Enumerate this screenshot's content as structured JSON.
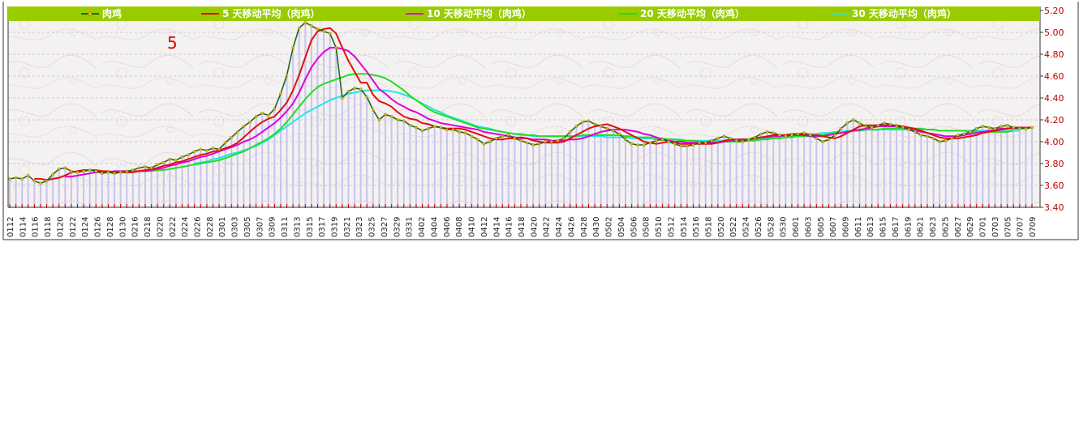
{
  "legend": [
    {
      "label": "肉鸡",
      "color": "#1a6b1a"
    },
    {
      "label": "5 天移动平均（肉鸡）",
      "color": "#e01010"
    },
    {
      "label": "10 天移动平均（肉鸡）",
      "color": "#dd00dd"
    },
    {
      "label": "20 天移动平均（肉鸡）",
      "color": "#22dd22"
    },
    {
      "label": "30 天移动平均（肉鸡）",
      "color": "#22e5e5"
    }
  ],
  "annotation": "5",
  "colors": {
    "legend_bar": "#99cc00",
    "legend_text": "#ffffff",
    "axis_text": "#c00000",
    "bars": "#c8c4ee",
    "price_line": "#1a6b1a",
    "price_markers": "#e8c000",
    "plot_bg": "#f4f1f1",
    "grid": "#c8c8dc"
  },
  "chart_data": {
    "type": "line",
    "grid": true,
    "legend_position": "top",
    "ylim": [
      3.4,
      5.2
    ],
    "yticks": [
      "5.20",
      "5.00",
      "4.80",
      "4.60",
      "4.40",
      "4.20",
      "4.00",
      "3.80",
      "3.60",
      "3.40"
    ],
    "xtick_labels": [
      "0112",
      "0114",
      "0116",
      "0118",
      "0120",
      "0122",
      "0124",
      "0126",
      "0128",
      "0130",
      "0216",
      "0218",
      "0220",
      "0222",
      "0224",
      "0226",
      "0228",
      "0301",
      "0303",
      "0305",
      "0307",
      "0309",
      "0311",
      "0313",
      "0315",
      "0317",
      "0319",
      "0321",
      "0323",
      "0325",
      "0327",
      "0329",
      "0331",
      "0402",
      "0404",
      "0406",
      "0408",
      "0410",
      "0412",
      "0414",
      "0416",
      "0418",
      "0420",
      "0422",
      "0424",
      "0426",
      "0428",
      "0430",
      "0502",
      "0504",
      "0506",
      "0508",
      "0510",
      "0512",
      "0514",
      "0516",
      "0518",
      "0520",
      "0522",
      "0524",
      "0526",
      "0528",
      "0530",
      "0601",
      "0603",
      "0605",
      "0607",
      "0609",
      "0611",
      "0613",
      "0615",
      "0617",
      "0619",
      "0621",
      "0623",
      "0625",
      "0627",
      "0629",
      "0701",
      "0703",
      "0705",
      "0707",
      "0709"
    ],
    "series": [
      {
        "name": "肉鸡",
        "key": "price",
        "values": [
          3.66,
          3.67,
          3.66,
          3.69,
          3.64,
          3.62,
          3.64,
          3.7,
          3.75,
          3.76,
          3.73,
          3.72,
          3.73,
          3.74,
          3.73,
          3.71,
          3.72,
          3.71,
          3.72,
          3.73,
          3.74,
          3.76,
          3.77,
          3.76,
          3.79,
          3.81,
          3.84,
          3.83,
          3.86,
          3.88,
          3.91,
          3.93,
          3.92,
          3.94,
          3.93,
          3.99,
          4.04,
          4.09,
          4.14,
          4.18,
          4.23,
          4.26,
          4.24,
          4.3,
          4.44,
          4.61,
          4.86,
          5.04,
          5.09,
          5.06,
          5.03,
          5.01,
          4.99,
          4.86,
          4.4,
          4.46,
          4.49,
          4.48,
          4.41,
          4.29,
          4.2,
          4.25,
          4.23,
          4.2,
          4.19,
          4.15,
          4.13,
          4.1,
          4.12,
          4.14,
          4.13,
          4.11,
          4.11,
          4.09,
          4.08,
          4.05,
          4.02,
          3.98,
          4.0,
          4.03,
          4.05,
          4.06,
          4.03,
          4.01,
          3.99,
          3.97,
          3.98,
          4.0,
          4.0,
          4.01,
          4.03,
          4.09,
          4.14,
          4.18,
          4.19,
          4.16,
          4.14,
          4.12,
          4.1,
          4.07,
          4.02,
          3.98,
          3.97,
          3.97,
          3.99,
          4.01,
          4.02,
          4.0,
          3.98,
          3.96,
          3.96,
          3.97,
          3.99,
          3.99,
          4.01,
          4.03,
          4.05,
          4.03,
          4.01,
          4.0,
          4.02,
          4.04,
          4.07,
          4.09,
          4.08,
          4.06,
          4.05,
          4.06,
          4.07,
          4.08,
          4.06,
          4.03,
          4.0,
          4.02,
          4.06,
          4.12,
          4.17,
          4.2,
          4.17,
          4.14,
          4.13,
          4.15,
          4.17,
          4.16,
          4.14,
          4.13,
          4.11,
          4.09,
          4.06,
          4.05,
          4.03,
          4.0,
          4.01,
          4.03,
          4.06,
          4.07,
          4.09,
          4.12,
          4.14,
          4.13,
          4.12,
          4.14,
          4.15,
          4.13,
          4.12,
          4.12,
          4.13
        ]
      },
      {
        "name": "5 天移动平均（肉鸡）",
        "key": "ma5",
        "values": [
          null,
          null,
          null,
          null,
          3.66,
          3.66,
          3.65,
          3.66,
          3.67,
          3.69,
          3.72,
          3.73,
          3.74,
          3.74,
          3.74,
          3.73,
          3.73,
          3.72,
          3.72,
          3.72,
          3.72,
          3.73,
          3.74,
          3.75,
          3.76,
          3.78,
          3.79,
          3.81,
          3.82,
          3.84,
          3.86,
          3.88,
          3.89,
          3.91,
          3.92,
          3.94,
          3.96,
          3.99,
          4.04,
          4.09,
          4.14,
          4.18,
          4.21,
          4.23,
          4.29,
          4.36,
          4.47,
          4.61,
          4.77,
          4.93,
          5.01,
          5.03,
          5.04,
          4.99,
          4.86,
          4.74,
          4.64,
          4.54,
          4.54,
          4.43,
          4.37,
          4.35,
          4.32,
          4.27,
          4.23,
          4.21,
          4.2,
          4.17,
          4.16,
          4.14,
          4.13,
          4.12,
          4.12,
          4.12,
          4.11,
          4.09,
          4.07,
          4.05,
          4.03,
          4.02,
          4.02,
          4.03,
          4.03,
          4.04,
          4.03,
          4.01,
          4.0,
          3.99,
          3.99,
          3.99,
          4.0,
          4.03,
          4.06,
          4.09,
          4.12,
          4.14,
          4.15,
          4.16,
          4.14,
          4.12,
          4.09,
          4.06,
          4.03,
          4.0,
          3.99,
          3.98,
          3.99,
          4.0,
          3.99,
          3.98,
          3.98,
          3.98,
          3.98,
          3.98,
          3.98,
          3.99,
          4.01,
          4.02,
          4.02,
          4.02,
          4.02,
          4.03,
          4.04,
          4.05,
          4.06,
          4.06,
          4.06,
          4.07,
          4.07,
          4.06,
          4.06,
          4.06,
          4.05,
          4.04,
          4.03,
          4.05,
          4.08,
          4.11,
          4.14,
          4.15,
          4.15,
          4.15,
          4.15,
          4.15,
          4.15,
          4.14,
          4.13,
          4.12,
          4.1,
          4.08,
          4.06,
          4.04,
          4.03,
          4.03,
          4.03,
          4.04,
          4.05,
          4.06,
          4.08,
          4.09,
          4.1,
          4.11,
          4.12,
          4.13,
          4.13,
          4.13,
          4.13
        ]
      },
      {
        "name": "10 天移动平均（肉鸡）",
        "key": "ma10",
        "values": [
          null,
          null,
          null,
          null,
          null,
          null,
          null,
          null,
          null,
          3.68,
          3.68,
          3.69,
          3.7,
          3.71,
          3.72,
          3.72,
          3.72,
          3.73,
          3.73,
          3.73,
          3.73,
          3.73,
          3.73,
          3.74,
          3.75,
          3.76,
          3.78,
          3.79,
          3.81,
          3.82,
          3.84,
          3.86,
          3.87,
          3.89,
          3.91,
          3.93,
          3.95,
          3.97,
          4.0,
          4.02,
          4.05,
          4.09,
          4.13,
          4.17,
          4.22,
          4.28,
          4.35,
          4.45,
          4.57,
          4.68,
          4.76,
          4.82,
          4.86,
          4.86,
          4.85,
          4.83,
          4.78,
          4.71,
          4.64,
          4.56,
          4.48,
          4.44,
          4.39,
          4.35,
          4.32,
          4.29,
          4.27,
          4.24,
          4.21,
          4.19,
          4.17,
          4.16,
          4.15,
          4.14,
          4.13,
          4.12,
          4.11,
          4.09,
          4.08,
          4.07,
          4.06,
          4.05,
          4.04,
          4.03,
          4.03,
          4.02,
          4.02,
          4.02,
          4.01,
          4.01,
          4.01,
          4.02,
          4.02,
          4.03,
          4.05,
          4.07,
          4.09,
          4.1,
          4.11,
          4.11,
          4.11,
          4.1,
          4.09,
          4.07,
          4.06,
          4.04,
          4.02,
          4.01,
          4.0,
          4.0,
          3.99,
          3.99,
          3.99,
          3.99,
          3.99,
          3.99,
          4.0,
          4.01,
          4.01,
          4.02,
          4.02,
          4.03,
          4.04,
          4.04,
          4.05,
          4.05,
          4.06,
          4.06,
          4.06,
          4.06,
          4.05,
          4.05,
          4.05,
          4.06,
          4.07,
          4.08,
          4.09,
          4.1,
          4.11,
          4.12,
          4.13,
          4.14,
          4.14,
          4.14,
          4.14,
          4.13,
          4.12,
          4.1,
          4.09,
          4.08,
          4.07,
          4.06,
          4.05,
          4.05,
          4.05,
          4.06,
          4.07,
          4.08,
          4.09,
          4.1,
          4.11,
          4.12,
          4.12,
          4.12,
          4.12
        ]
      },
      {
        "name": "20 天移动平均（肉鸡）",
        "key": "ma20",
        "values": [
          null,
          null,
          null,
          null,
          null,
          null,
          null,
          null,
          null,
          null,
          null,
          null,
          null,
          null,
          null,
          null,
          null,
          null,
          null,
          3.72,
          3.72,
          3.73,
          3.73,
          3.73,
          3.74,
          3.74,
          3.75,
          3.76,
          3.77,
          3.78,
          3.79,
          3.8,
          3.81,
          3.82,
          3.83,
          3.85,
          3.87,
          3.89,
          3.91,
          3.94,
          3.97,
          4.0,
          4.03,
          4.07,
          4.12,
          4.18,
          4.25,
          4.32,
          4.39,
          4.45,
          4.5,
          4.53,
          4.55,
          4.57,
          4.59,
          4.61,
          4.62,
          4.62,
          4.62,
          4.61,
          4.6,
          4.58,
          4.55,
          4.51,
          4.47,
          4.42,
          4.38,
          4.34,
          4.3,
          4.27,
          4.25,
          4.23,
          4.21,
          4.19,
          4.17,
          4.15,
          4.13,
          4.12,
          4.11,
          4.1,
          4.09,
          4.08,
          4.07,
          4.07,
          4.06,
          4.06,
          4.05,
          4.05,
          4.05,
          4.05,
          4.05,
          4.05,
          4.05,
          4.06,
          4.06,
          4.06,
          4.06,
          4.06,
          4.06,
          4.06,
          4.05,
          4.05,
          4.04,
          4.04,
          4.04,
          4.03,
          4.03,
          4.02,
          4.02,
          4.01,
          4.01,
          4.01,
          4.0,
          4.0,
          4.0,
          4.0,
          4.0,
          4.0,
          4.0,
          4.0,
          4.01,
          4.01,
          4.02,
          4.02,
          4.03,
          4.03,
          4.04,
          4.04,
          4.05,
          4.05,
          4.05,
          4.06,
          4.06,
          4.07,
          4.08,
          4.08,
          4.09,
          4.1,
          4.1,
          4.11,
          4.11,
          4.11,
          4.12,
          4.12,
          4.12,
          4.12,
          4.12,
          4.12,
          4.12,
          4.11,
          4.11,
          4.1,
          4.1,
          4.1,
          4.1,
          4.1,
          4.09,
          4.09,
          4.09,
          4.09,
          4.09,
          4.09,
          4.09,
          4.1
        ]
      },
      {
        "name": "30 天移动平均（肉鸡）",
        "key": "ma30",
        "values": [
          null,
          null,
          null,
          null,
          null,
          null,
          null,
          null,
          null,
          null,
          null,
          null,
          null,
          null,
          null,
          null,
          null,
          null,
          null,
          null,
          null,
          null,
          null,
          null,
          null,
          null,
          null,
          null,
          null,
          null,
          3.8,
          3.81,
          3.82,
          3.84,
          3.85,
          3.87,
          3.89,
          3.9,
          3.92,
          3.94,
          3.96,
          3.99,
          4.02,
          4.06,
          4.1,
          4.14,
          4.18,
          4.22,
          4.26,
          4.29,
          4.32,
          4.35,
          4.38,
          4.4,
          4.42,
          4.44,
          4.45,
          4.46,
          4.47,
          4.47,
          4.47,
          4.47,
          4.46,
          4.45,
          4.43,
          4.41,
          4.38,
          4.35,
          4.32,
          4.29,
          4.27,
          4.24,
          4.22,
          4.2,
          4.18,
          4.16,
          4.14,
          4.13,
          4.12,
          4.1,
          4.09,
          4.08,
          4.07,
          4.06,
          4.06,
          4.05,
          4.05,
          4.05,
          4.05,
          4.05,
          4.05,
          4.05,
          4.05,
          4.05,
          4.05,
          4.05,
          4.05,
          4.04,
          4.04,
          4.04,
          4.04,
          4.03,
          4.03,
          4.03,
          4.03,
          4.02,
          4.02,
          4.02,
          4.02,
          4.02,
          4.01,
          4.01,
          4.01,
          4.01,
          4.01,
          4.01,
          4.01,
          4.01,
          4.02,
          4.02,
          4.02,
          4.02,
          4.03,
          4.03,
          4.04,
          4.04,
          4.05,
          4.05,
          4.06,
          4.06,
          4.07,
          4.07,
          4.08,
          4.08,
          4.09,
          4.09,
          4.1,
          4.1,
          4.1,
          4.11,
          4.11,
          4.11,
          4.11,
          4.11,
          4.11,
          4.11,
          4.11,
          4.11,
          4.11,
          4.11,
          4.11,
          4.1,
          4.1,
          4.1,
          4.1,
          4.1,
          4.1,
          4.1,
          4.1,
          4.1,
          4.1,
          4.1,
          4.1,
          4.1,
          4.1
        ]
      }
    ]
  }
}
